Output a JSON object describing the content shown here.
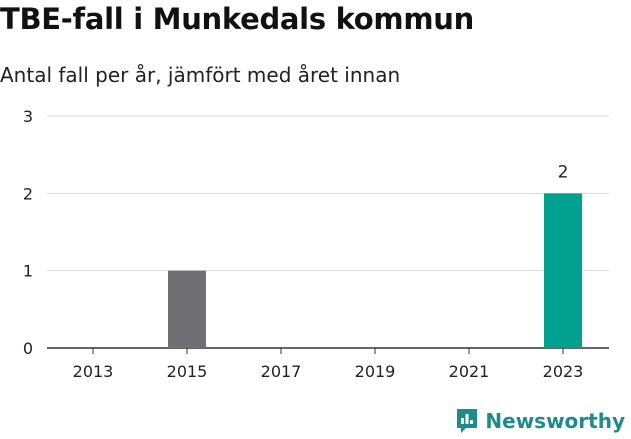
{
  "brand": {
    "name": "Newsworthy",
    "color": "#1f8a8e"
  },
  "chart_data": {
    "type": "bar",
    "title": "TBE-fall i Munkedals kommun",
    "subtitle": "Antal fall per år, jämfört med året innan",
    "categories": [
      "2013",
      "2014",
      "2015",
      "2016",
      "2017",
      "2018",
      "2019",
      "2020",
      "2021",
      "2022",
      "2023"
    ],
    "x_tick_labels": [
      "2013",
      "2015",
      "2017",
      "2019",
      "2021",
      "2023"
    ],
    "values": [
      0,
      0,
      1,
      0,
      0,
      0,
      0,
      0,
      0,
      0,
      2
    ],
    "bar_colors": [
      "#707074",
      "#707074",
      "#707074",
      "#707074",
      "#707074",
      "#707074",
      "#707074",
      "#707074",
      "#707074",
      "#707074",
      "#00a28f"
    ],
    "data_labels": [
      {
        "category": "2023",
        "text": "2"
      }
    ],
    "y_ticks": [
      "0",
      "1",
      "2",
      "3"
    ],
    "ylim": [
      0,
      3
    ],
    "grid": true,
    "legend": "none"
  }
}
